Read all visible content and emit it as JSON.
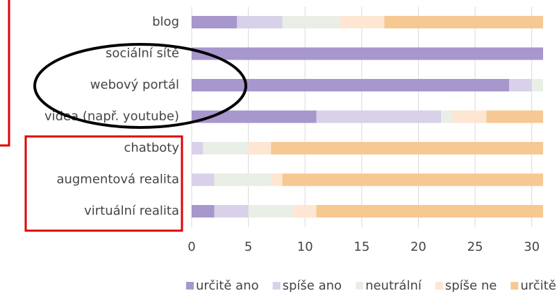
{
  "chart_data": {
    "type": "stacked_barh",
    "categories": [
      "blog",
      "sociální sítě",
      "webový portál",
      "videa (např. youtube)",
      "chatboty",
      "augmentová realita",
      "virtuální realita"
    ],
    "series": [
      {
        "name": "určitě ano",
        "color": "#a797cc",
        "values": [
          4,
          31,
          28,
          11,
          0,
          0,
          2
        ]
      },
      {
        "name": "spíše ano",
        "color": "#d9d0e9",
        "values": [
          4,
          0,
          2,
          11,
          1,
          2,
          3
        ]
      },
      {
        "name": "neutrální",
        "color": "#e9eee6",
        "values": [
          5,
          0,
          1,
          1,
          4,
          5,
          4
        ]
      },
      {
        "name": "spíše ne",
        "color": "#fde6d2",
        "values": [
          4,
          0,
          0,
          3,
          2,
          1,
          2
        ]
      },
      {
        "name": "určitě ne",
        "color": "#f6c892",
        "values": [
          14,
          0,
          0,
          5,
          24,
          23,
          20
        ]
      }
    ],
    "xlim": [
      0,
      31
    ],
    "xticks": [
      0,
      5,
      10,
      15,
      20,
      25,
      30
    ],
    "grid": true,
    "legend": "bottom"
  }
}
